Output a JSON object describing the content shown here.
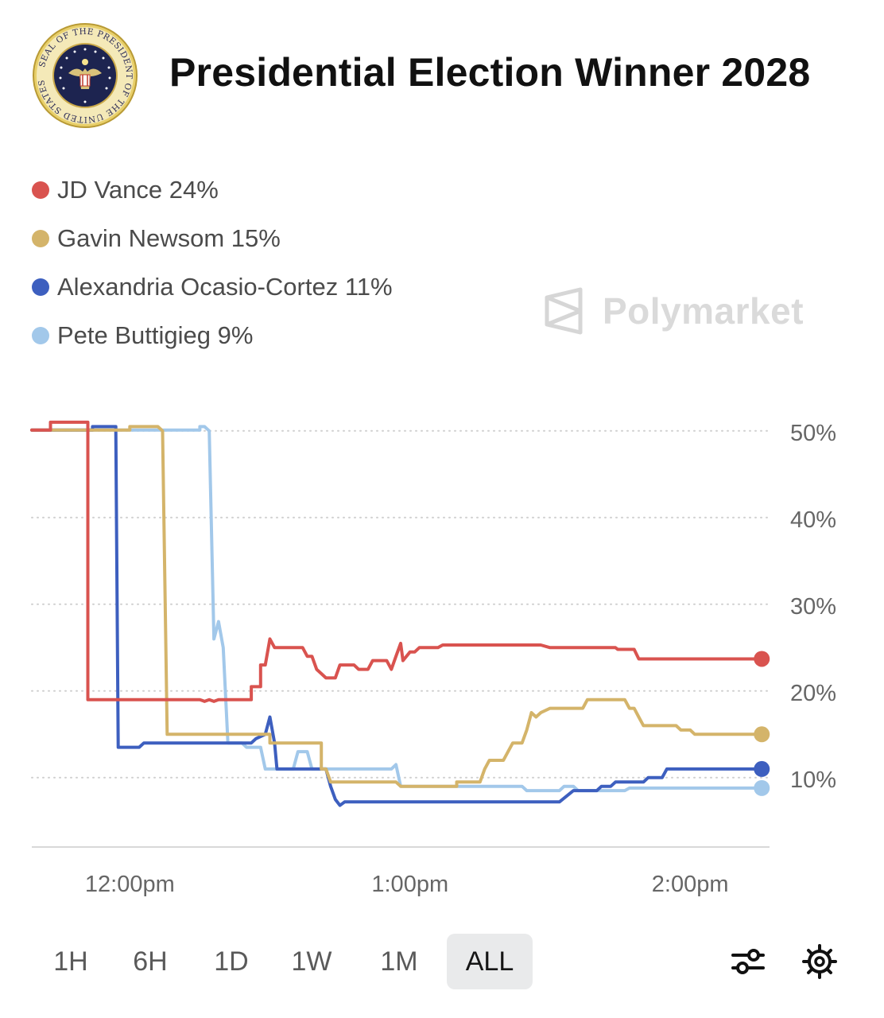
{
  "header": {
    "title": "Presidential Election Winner 2028",
    "seal_text": "SEAL OF THE PRESIDENT OF THE UNITED STATES",
    "seal_icon": "presidential-seal-icon"
  },
  "legend": [
    {
      "label": "JD Vance 24%",
      "color": "#d9534f"
    },
    {
      "label": "Gavin Newsom 15%",
      "color": "#d4b46a"
    },
    {
      "label": "Alexandria Ocasio-Cortez 11%",
      "color": "#3d5fbf"
    },
    {
      "label": "Pete Buttigieg 9%",
      "color": "#a2c8ea"
    }
  ],
  "watermark": {
    "label": "Polymarket",
    "icon": "polymarket-logo-icon"
  },
  "chart_data": {
    "type": "line",
    "title": "",
    "xlabel": "",
    "ylabel": "",
    "y_axis_position": "right",
    "y_ticks": [
      10,
      20,
      30,
      40,
      50
    ],
    "y_tick_labels": [
      "10%",
      "20%",
      "30%",
      "40%",
      "50%"
    ],
    "ylim": [
      2,
      52
    ],
    "x_ticks": [
      720,
      780,
      840
    ],
    "x_tick_labels": [
      "12:00pm",
      "1:00pm",
      "2:00pm"
    ],
    "xlim": [
      699,
      857
    ],
    "x_unit": "minutes since midnight (clock time)",
    "grid": true,
    "legend_position": "top-left",
    "series": [
      {
        "name": "JD Vance",
        "color": "#d9534f",
        "points": [
          [
            699,
            50.1
          ],
          [
            703,
            50.1
          ],
          [
            703,
            51
          ],
          [
            711,
            51
          ],
          [
            711,
            19
          ],
          [
            725,
            19
          ],
          [
            735,
            19
          ],
          [
            736,
            18.8
          ],
          [
            737,
            19
          ],
          [
            738,
            18.8
          ],
          [
            739,
            19
          ],
          [
            746,
            19
          ],
          [
            746,
            20.5
          ],
          [
            748,
            20.5
          ],
          [
            748,
            23
          ],
          [
            749,
            23
          ],
          [
            750,
            26
          ],
          [
            751,
            25
          ],
          [
            757,
            25
          ],
          [
            758,
            24
          ],
          [
            759,
            24
          ],
          [
            760,
            22.5
          ],
          [
            761,
            22
          ],
          [
            762,
            21.5
          ],
          [
            764,
            21.5
          ],
          [
            765,
            23
          ],
          [
            768,
            23
          ],
          [
            769,
            22.5
          ],
          [
            771,
            22.5
          ],
          [
            772,
            23.5
          ],
          [
            775,
            23.5
          ],
          [
            776,
            22.5
          ],
          [
            777,
            24
          ],
          [
            778,
            25.5
          ],
          [
            778.5,
            23.5
          ],
          [
            780,
            24.5
          ],
          [
            781,
            24.5
          ],
          [
            782,
            25
          ],
          [
            786,
            25
          ],
          [
            787,
            25.3
          ],
          [
            808,
            25.3
          ],
          [
            810,
            25
          ],
          [
            824,
            25
          ],
          [
            824.5,
            24.8
          ],
          [
            828,
            24.8
          ],
          [
            829,
            23.7
          ],
          [
            855,
            23.7
          ]
        ]
      },
      {
        "name": "Gavin Newsom",
        "color": "#d4b46a",
        "points": [
          [
            699,
            50.1
          ],
          [
            720,
            50.1
          ],
          [
            720,
            50.5
          ],
          [
            726,
            50.5
          ],
          [
            727,
            50
          ],
          [
            728,
            15
          ],
          [
            746,
            15
          ],
          [
            750,
            15
          ],
          [
            750,
            14
          ],
          [
            761,
            14
          ],
          [
            761,
            11
          ],
          [
            762,
            11
          ],
          [
            763,
            9.5
          ],
          [
            777,
            9.5
          ],
          [
            778,
            9
          ],
          [
            790,
            9
          ],
          [
            790,
            9.5
          ],
          [
            795,
            9.5
          ],
          [
            796,
            11
          ],
          [
            797,
            12
          ],
          [
            800,
            12
          ],
          [
            801,
            13
          ],
          [
            802,
            14
          ],
          [
            804,
            14
          ],
          [
            805,
            15.5
          ],
          [
            806,
            17.5
          ],
          [
            807,
            17
          ],
          [
            808,
            17.5
          ],
          [
            810,
            18
          ],
          [
            817,
            18
          ],
          [
            818,
            19
          ],
          [
            826,
            19
          ],
          [
            827,
            18
          ],
          [
            828,
            18
          ],
          [
            829,
            17
          ],
          [
            830,
            16
          ],
          [
            837,
            16
          ],
          [
            838,
            15.5
          ],
          [
            840,
            15.5
          ],
          [
            841,
            15
          ],
          [
            855,
            15
          ]
        ]
      },
      {
        "name": "Alexandria Ocasio-Cortez",
        "color": "#3d5fbf",
        "points": [
          [
            699,
            50.1
          ],
          [
            712,
            50.1
          ],
          [
            712,
            50.5
          ],
          [
            717,
            50.5
          ],
          [
            717,
            50
          ],
          [
            717.5,
            13.5
          ],
          [
            722,
            13.5
          ],
          [
            723,
            14
          ],
          [
            746,
            14
          ],
          [
            747,
            14.5
          ],
          [
            749,
            15
          ],
          [
            750,
            17
          ],
          [
            751,
            14
          ],
          [
            751.5,
            11
          ],
          [
            752,
            11
          ],
          [
            762,
            11
          ],
          [
            763,
            9
          ],
          [
            764,
            7.5
          ],
          [
            765,
            6.8
          ],
          [
            766,
            7.2
          ],
          [
            768,
            7.2
          ],
          [
            812,
            7.2
          ],
          [
            815,
            8.5
          ],
          [
            820,
            8.5
          ],
          [
            821,
            9
          ],
          [
            823,
            9
          ],
          [
            824,
            9.5
          ],
          [
            830,
            9.5
          ],
          [
            831,
            10
          ],
          [
            834,
            10
          ],
          [
            835,
            11
          ],
          [
            855,
            11
          ]
        ]
      },
      {
        "name": "Pete Buttigieg",
        "color": "#a2c8ea",
        "points": [
          [
            699,
            50.1
          ],
          [
            735,
            50.1
          ],
          [
            735,
            50.5
          ],
          [
            736,
            50.5
          ],
          [
            737,
            50
          ],
          [
            738,
            26
          ],
          [
            739,
            28
          ],
          [
            740,
            25
          ],
          [
            741,
            14
          ],
          [
            744,
            14
          ],
          [
            745,
            13.5
          ],
          [
            748,
            13.5
          ],
          [
            749,
            11
          ],
          [
            755,
            11
          ],
          [
            756,
            13
          ],
          [
            758,
            13
          ],
          [
            759,
            11
          ],
          [
            776,
            11
          ],
          [
            777,
            11.5
          ],
          [
            778,
            9
          ],
          [
            800,
            9
          ],
          [
            804,
            9
          ],
          [
            805,
            8.5
          ],
          [
            807,
            8.5
          ],
          [
            808,
            8.5
          ],
          [
            812,
            8.5
          ],
          [
            813,
            9
          ],
          [
            815,
            9
          ],
          [
            816,
            8.5
          ],
          [
            826,
            8.5
          ],
          [
            827,
            8.8
          ],
          [
            855,
            8.8
          ]
        ]
      }
    ]
  },
  "range_tabs": [
    {
      "label": "1H",
      "active": false
    },
    {
      "label": "6H",
      "active": false
    },
    {
      "label": "1D",
      "active": false
    },
    {
      "label": "1W",
      "active": false
    },
    {
      "label": "1M",
      "active": false
    },
    {
      "label": "ALL",
      "active": true
    }
  ],
  "toolbar": {
    "filter_icon": "sliders-icon",
    "settings_icon": "gear-icon"
  },
  "colors": {
    "grid": "#cfcfcf",
    "tick_text": "#666666",
    "active_tab_bg": "#e9eaeb"
  }
}
